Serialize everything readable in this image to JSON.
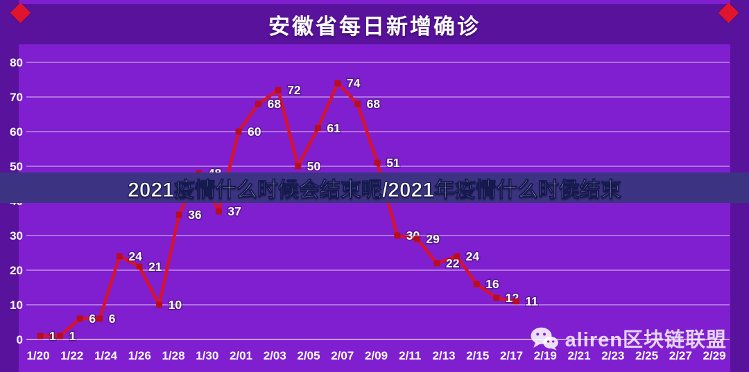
{
  "page": {
    "title": "安徽省每日新增确诊",
    "overlay_banner": "2021疫情什么时候会结束呢/2021年疫情什么时侯结束",
    "watermark": {
      "icon": "wechat-icon",
      "text": "aliren区块链联盟"
    }
  },
  "colors": {
    "background": "#7f1fd0",
    "frame": "#58129b",
    "diamond": "#e1142d",
    "line": "#d8122b",
    "marker": "#b70d20",
    "grid": "rgba(255,255,255,0.75)",
    "banner_bg": "#3d3383",
    "text": "#ffffff",
    "watermark_text": "rgba(255,255,255,0.8)"
  },
  "chart_data": {
    "type": "line",
    "title": "安徽省每日新增确诊",
    "x_tick_labels": [
      "1/20",
      "1/22",
      "1/24",
      "1/26",
      "1/28",
      "1/30",
      "2/01",
      "2/03",
      "2/05",
      "2/07",
      "2/09",
      "2/11",
      "2/13",
      "2/15",
      "2/17",
      "2/19",
      "2/21",
      "2/23",
      "2/25",
      "2/27",
      "2/29"
    ],
    "y_ticks": [
      0,
      10,
      20,
      30,
      40,
      50,
      60,
      70,
      80
    ],
    "ylim": [
      0,
      80
    ],
    "grid": true,
    "legend_position": "none",
    "series": [
      {
        "name": "每日新增确诊",
        "values": [
          1,
          1,
          6,
          6,
          24,
          21,
          10,
          36,
          48,
          37,
          60,
          68,
          72,
          50,
          61,
          74,
          68,
          51,
          30,
          29,
          22,
          24,
          16,
          12,
          11
        ]
      }
    ]
  }
}
